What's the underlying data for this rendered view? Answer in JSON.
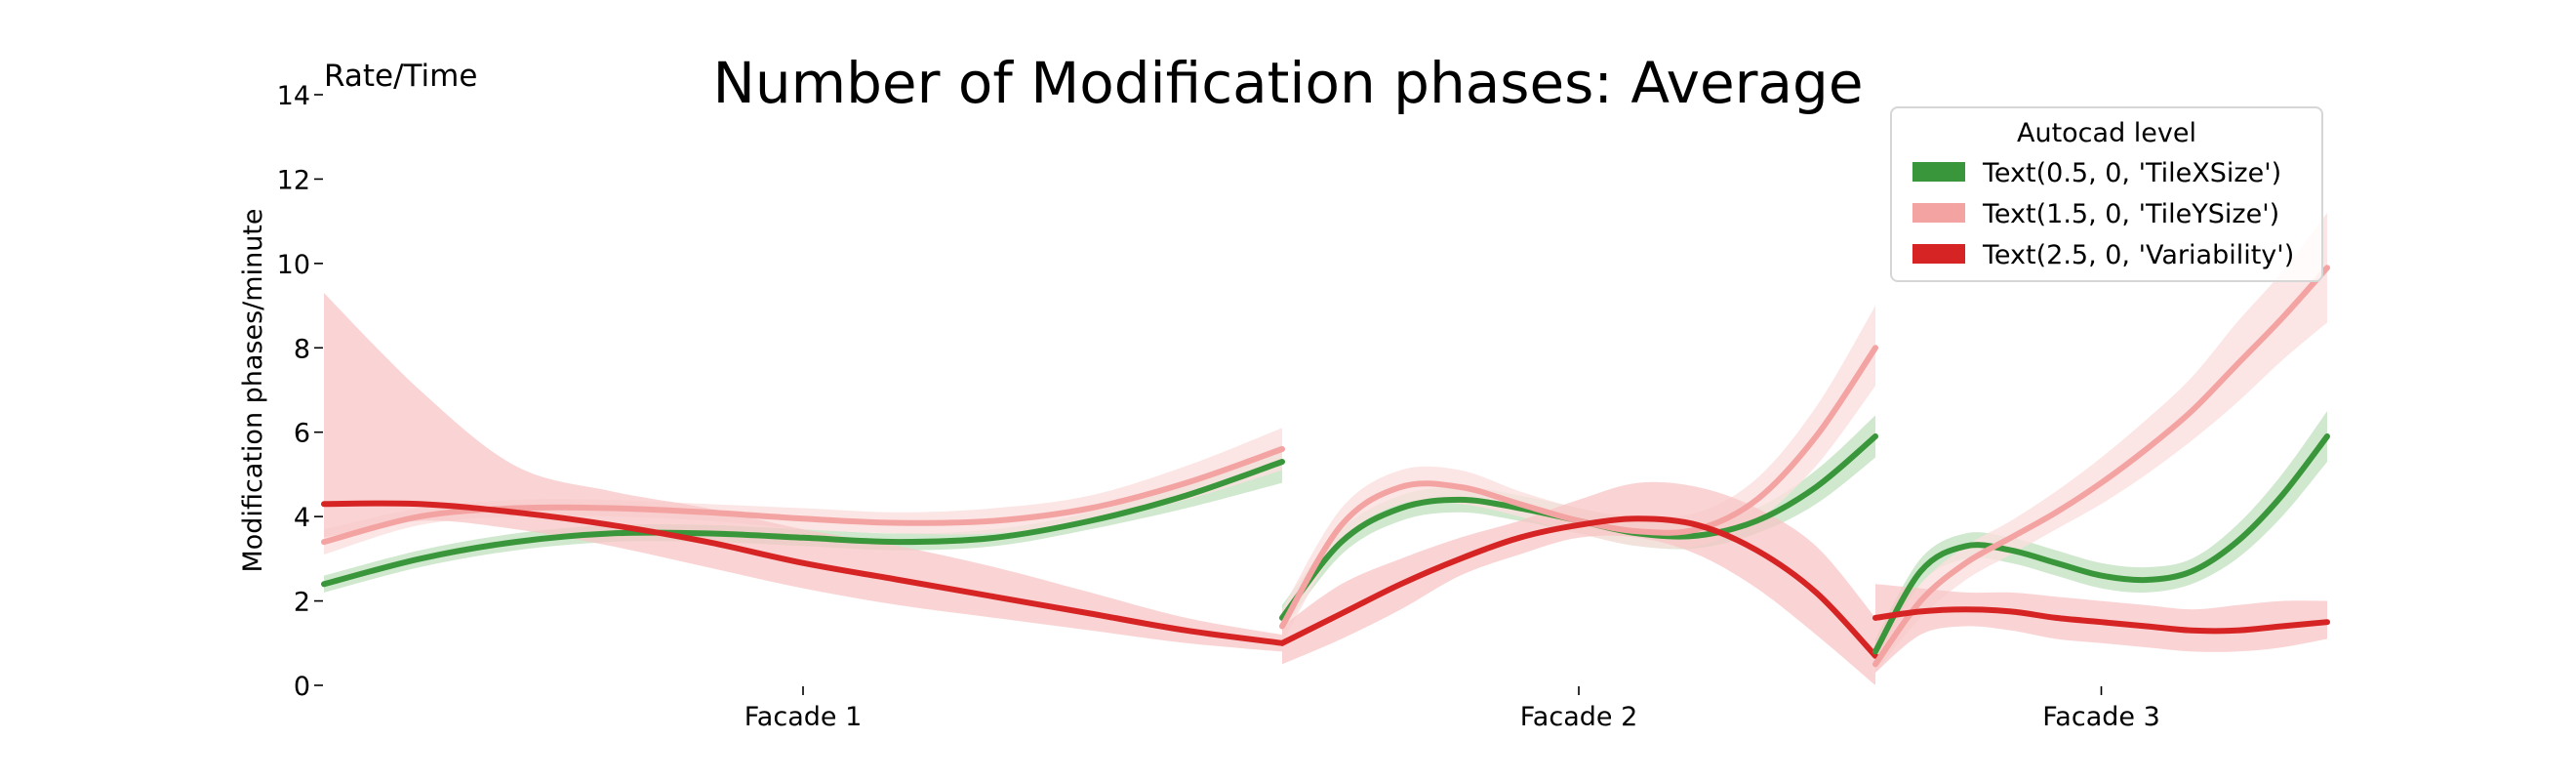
{
  "chart_data": {
    "type": "line",
    "title": "Number of Modification phases: Average",
    "corner_label": "Rate/Time",
    "ylabel": "Modification phases/minute",
    "xlabel": "",
    "ylim": [
      0,
      14
    ],
    "yticks": [
      0,
      2,
      4,
      6,
      8,
      10,
      12,
      14
    ],
    "grid": false,
    "legend": {
      "title": "Autocad level",
      "placement": "top-right",
      "entries": [
        "Text(0.5, 0, 'TileXSize')",
        "Text(1.5, 0, 'TileYSize')",
        "Text(2.5, 0, 'Variability')"
      ]
    },
    "colors": {
      "green": "#3a963a",
      "pink": "#f4a3a3",
      "red": "#d62424",
      "band_green": "#bfe0bd",
      "band_pink": "#fbdede",
      "band_red": "#f8c6c6"
    },
    "panels": [
      {
        "label": "Facade 1",
        "series": [
          {
            "name": "Text(0.5, 0, 'TileXSize')",
            "x": [
              0,
              0.1,
              0.2,
              0.3,
              0.4,
              0.5,
              0.6,
              0.7,
              0.8,
              0.9,
              1.0
            ],
            "y": [
              2.4,
              3.0,
              3.4,
              3.6,
              3.6,
              3.5,
              3.4,
              3.5,
              3.9,
              4.5,
              5.3
            ],
            "lower": [
              2.2,
              2.8,
              3.2,
              3.4,
              3.4,
              3.3,
              3.2,
              3.3,
              3.7,
              4.2,
              4.8
            ],
            "upper": [
              2.6,
              3.2,
              3.6,
              3.8,
              3.8,
              3.7,
              3.6,
              3.7,
              4.1,
              4.8,
              5.7
            ]
          },
          {
            "name": "Text(1.5, 0, 'TileYSize')",
            "x": [
              0,
              0.1,
              0.2,
              0.3,
              0.4,
              0.5,
              0.6,
              0.7,
              0.8,
              0.9,
              1.0
            ],
            "y": [
              3.4,
              4.0,
              4.2,
              4.2,
              4.1,
              3.95,
              3.85,
              3.9,
              4.2,
              4.8,
              5.6
            ],
            "lower": [
              3.1,
              3.8,
              4.0,
              4.0,
              3.9,
              3.7,
              3.6,
              3.6,
              3.9,
              4.4,
              5.1
            ],
            "upper": [
              3.7,
              4.2,
              4.4,
              4.4,
              4.3,
              4.2,
              4.1,
              4.2,
              4.5,
              5.2,
              6.1
            ]
          },
          {
            "name": "Text(2.5, 0, 'Variability')",
            "x": [
              0,
              0.1,
              0.2,
              0.3,
              0.4,
              0.5,
              0.6,
              0.7,
              0.8,
              0.9,
              1.0
            ],
            "y": [
              4.3,
              4.3,
              4.1,
              3.8,
              3.4,
              2.9,
              2.5,
              2.1,
              1.7,
              1.3,
              1.0
            ],
            "lower": [
              3.5,
              3.9,
              3.7,
              3.3,
              2.8,
              2.3,
              1.9,
              1.6,
              1.3,
              1.0,
              0.8
            ],
            "upper": [
              9.3,
              7.0,
              5.2,
              4.6,
              4.2,
              3.7,
              3.3,
              2.8,
              2.2,
              1.6,
              1.2
            ]
          }
        ]
      },
      {
        "label": "Facade 2",
        "series": [
          {
            "name": "Text(0.5, 0, 'TileXSize')",
            "x": [
              0,
              0.1,
              0.2,
              0.3,
              0.4,
              0.5,
              0.6,
              0.7,
              0.8,
              0.9,
              1.0
            ],
            "y": [
              1.6,
              3.4,
              4.2,
              4.4,
              4.2,
              3.9,
              3.6,
              3.55,
              3.9,
              4.7,
              5.9
            ],
            "lower": [
              1.3,
              3.1,
              3.9,
              4.1,
              3.9,
              3.6,
              3.3,
              3.25,
              3.6,
              4.3,
              5.4
            ],
            "upper": [
              1.9,
              3.7,
              4.5,
              4.7,
              4.5,
              4.2,
              3.9,
              3.85,
              4.2,
              5.1,
              6.4
            ]
          },
          {
            "name": "Text(1.5, 0, 'TileYSize')",
            "x": [
              0,
              0.1,
              0.2,
              0.3,
              0.4,
              0.5,
              0.6,
              0.7,
              0.8,
              0.9,
              1.0
            ],
            "y": [
              1.4,
              3.8,
              4.7,
              4.7,
              4.3,
              3.9,
              3.65,
              3.7,
              4.4,
              5.9,
              8.0
            ],
            "lower": [
              1.0,
              3.4,
              4.3,
              4.3,
              4.0,
              3.6,
              3.3,
              3.3,
              3.9,
              5.2,
              7.1
            ],
            "upper": [
              1.8,
              4.2,
              5.1,
              5.1,
              4.6,
              4.2,
              4.0,
              4.1,
              4.9,
              6.6,
              9.0
            ]
          },
          {
            "name": "Text(2.5, 0, 'Variability')",
            "x": [
              0,
              0.1,
              0.2,
              0.3,
              0.4,
              0.5,
              0.6,
              0.7,
              0.8,
              0.9,
              1.0
            ],
            "y": [
              1.0,
              1.7,
              2.4,
              3.0,
              3.5,
              3.8,
              3.95,
              3.8,
              3.2,
              2.2,
              0.7
            ],
            "lower": [
              0.5,
              1.1,
              1.8,
              2.6,
              3.1,
              3.5,
              3.5,
              3.1,
              2.3,
              1.2,
              0.0
            ],
            "upper": [
              1.4,
              2.4,
              3.0,
              3.5,
              3.9,
              4.4,
              4.8,
              4.7,
              4.2,
              3.3,
              1.6
            ]
          }
        ]
      },
      {
        "label": "Facade 3",
        "series": [
          {
            "name": "Text(0.5, 0, 'TileXSize')",
            "x": [
              0,
              0.1,
              0.2,
              0.3,
              0.4,
              0.5,
              0.6,
              0.7,
              0.8,
              0.9,
              1.0
            ],
            "y": [
              0.8,
              2.7,
              3.3,
              3.2,
              2.9,
              2.6,
              2.5,
              2.7,
              3.4,
              4.5,
              5.9
            ],
            "lower": [
              0.5,
              2.4,
              3.0,
              2.9,
              2.6,
              2.3,
              2.2,
              2.4,
              3.0,
              4.0,
              5.3
            ],
            "upper": [
              1.1,
              3.0,
              3.6,
              3.5,
              3.2,
              2.9,
              2.8,
              3.0,
              3.8,
              5.0,
              6.5
            ]
          },
          {
            "name": "Text(1.5, 0, 'TileYSize')",
            "x": [
              0,
              0.1,
              0.2,
              0.3,
              0.4,
              0.5,
              0.6,
              0.7,
              0.8,
              0.9,
              1.0
            ],
            "y": [
              0.5,
              2.0,
              2.9,
              3.5,
              4.1,
              4.8,
              5.6,
              6.5,
              7.6,
              8.7,
              9.9
            ],
            "lower": [
              0.3,
              1.6,
              2.5,
              3.1,
              3.7,
              4.3,
              5.0,
              5.8,
              6.7,
              7.7,
              8.6
            ],
            "upper": [
              0.8,
              2.4,
              3.3,
              3.9,
              4.6,
              5.4,
              6.3,
              7.3,
              8.6,
              9.8,
              11.2
            ]
          },
          {
            "name": "Text(2.5, 0, 'Variability')",
            "x": [
              0,
              0.1,
              0.2,
              0.3,
              0.4,
              0.5,
              0.6,
              0.7,
              0.8,
              0.9,
              1.0
            ],
            "y": [
              1.6,
              1.75,
              1.8,
              1.75,
              1.6,
              1.5,
              1.4,
              1.3,
              1.3,
              1.4,
              1.5
            ],
            "lower": [
              0.3,
              1.2,
              1.4,
              1.3,
              1.1,
              1.0,
              0.9,
              0.8,
              0.8,
              0.9,
              1.1
            ],
            "upper": [
              2.4,
              2.3,
              2.2,
              2.2,
              2.1,
              2.0,
              1.9,
              1.8,
              1.9,
              2.0,
              2.0
            ]
          }
        ]
      }
    ]
  }
}
